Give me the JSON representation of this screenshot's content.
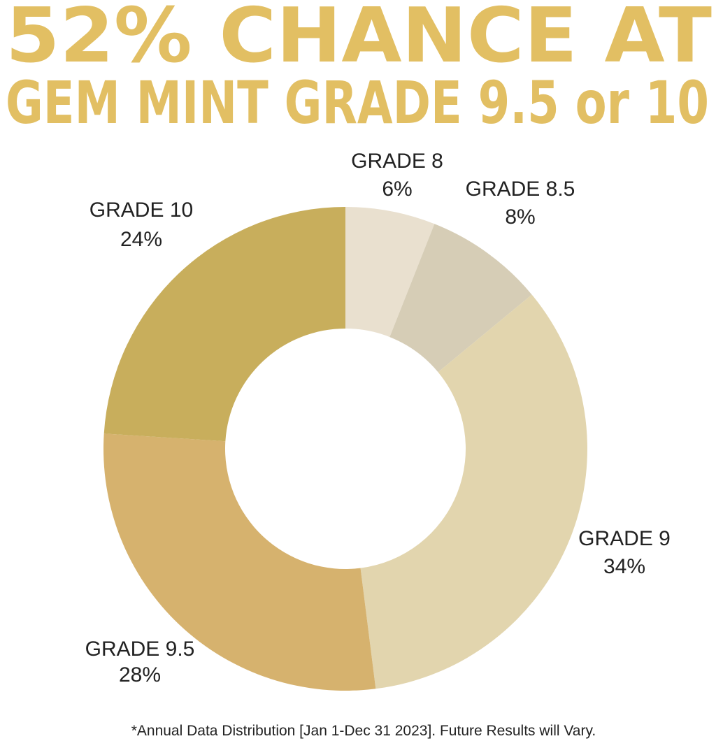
{
  "chart_data": {
    "type": "donut",
    "title": "52% CHANCE AT",
    "subtitle": "GEM MINT GRADE 9.5 or 10",
    "categories": [
      "GRADE 8",
      "GRADE 8.5",
      "GRADE 9",
      "GRADE 9.5",
      "GRADE 10"
    ],
    "values": [
      6,
      8,
      34,
      28,
      24
    ],
    "value_labels": [
      "6%",
      "8%",
      "34%",
      "28%",
      "24%"
    ],
    "colors": [
      "#e9e0cf",
      "#d6cdb6",
      "#e2d5ae",
      "#d6b26e",
      "#c8ae5c"
    ],
    "footnote": "*Annual Data Distribution [Jan 1-Dec 31 2023]. Future Results will Vary."
  }
}
